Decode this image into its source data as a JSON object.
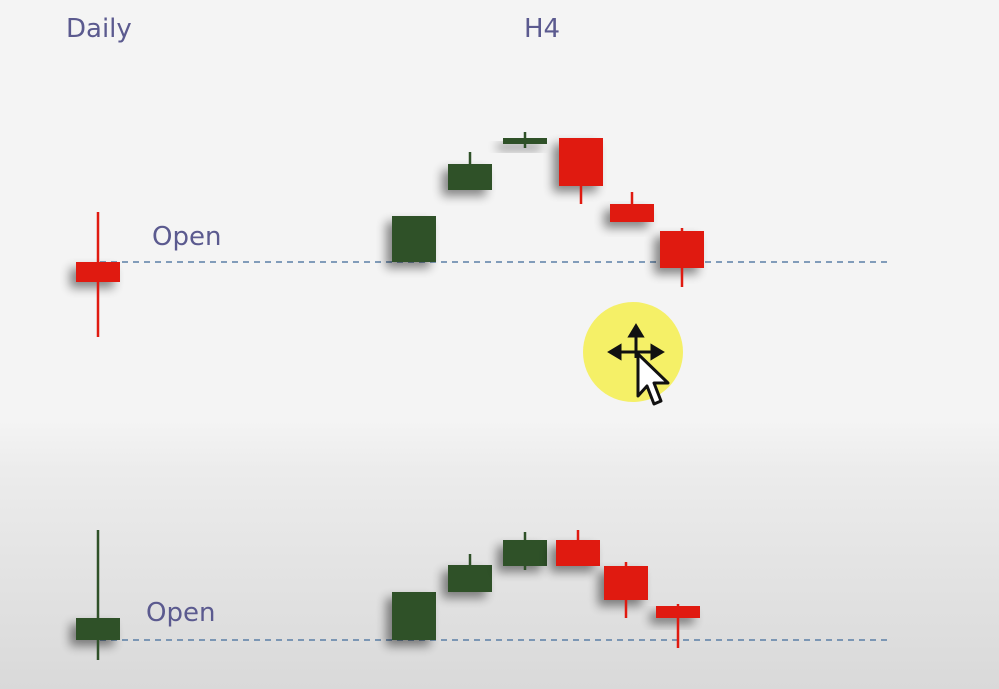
{
  "headers": {
    "daily": "Daily",
    "h4": "H4"
  },
  "open_label": "Open",
  "colors": {
    "bull": "#2f5128",
    "bear": "#e01a10",
    "line": "#5b7fa6",
    "text": "#5b5a8f",
    "cursor_halo": "#f5ee4d"
  },
  "panels": [
    {
      "name": "top",
      "daily": {
        "dir": "bear",
        "open": 100,
        "high": 150,
        "low": 25,
        "close": 80
      },
      "h4": [
        {
          "dir": "bull",
          "open": 100,
          "close": 146,
          "high": 146,
          "low": 100
        },
        {
          "dir": "bull",
          "open": 172,
          "close": 198,
          "high": 210,
          "low": 172
        },
        {
          "dir": "bull",
          "open": 218,
          "close": 224,
          "high": 230,
          "low": 214
        },
        {
          "dir": "bear",
          "open": 224,
          "close": 176,
          "high": 224,
          "low": 158
        },
        {
          "dir": "bear",
          "open": 158,
          "close": 140,
          "high": 170,
          "low": 140
        },
        {
          "dir": "bear",
          "open": 131,
          "close": 94,
          "high": 134,
          "low": 75
        }
      ]
    },
    {
      "name": "bottom",
      "daily": {
        "dir": "bull",
        "open": 100,
        "high": 210,
        "low": 80,
        "close": 122
      },
      "h4": [
        {
          "dir": "bull",
          "open": 100,
          "close": 148,
          "high": 148,
          "low": 100
        },
        {
          "dir": "bull",
          "open": 148,
          "close": 175,
          "high": 186,
          "low": 148
        },
        {
          "dir": "bull",
          "open": 174,
          "close": 200,
          "high": 208,
          "low": 170
        },
        {
          "dir": "bear",
          "open": 200,
          "close": 174,
          "high": 210,
          "low": 174
        },
        {
          "dir": "bear",
          "open": 174,
          "close": 140,
          "high": 178,
          "low": 122
        },
        {
          "dir": "bear",
          "open": 134,
          "close": 122,
          "high": 136,
          "low": 92
        }
      ]
    }
  ]
}
